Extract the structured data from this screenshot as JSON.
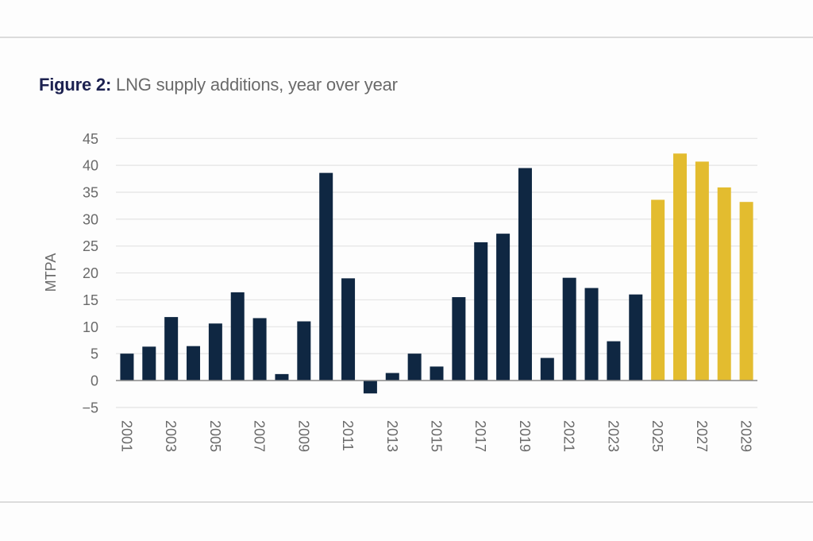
{
  "title": {
    "prefix": "Figure 2:",
    "text": "LNG supply additions, year over year"
  },
  "colors": {
    "historical": "#0f2742",
    "forecast": "#e3bc2f",
    "gridline": "#e4e4e4",
    "zero_line": "#8a8a8a",
    "title_prefix": "#1c2150",
    "text": "#6a6a6a"
  },
  "chart_data": {
    "type": "bar",
    "title": "Figure 2: LNG supply additions, year over year",
    "xlabel": "",
    "ylabel": "MTPA",
    "ylim": [
      -5,
      45
    ],
    "yticks": [
      -5,
      0,
      5,
      10,
      15,
      20,
      25,
      30,
      35,
      40,
      45
    ],
    "grid": true,
    "legend": "none",
    "categories": [
      "2001",
      "2002",
      "2003",
      "2004",
      "2005",
      "2006",
      "2007",
      "2008",
      "2009",
      "2010",
      "2011",
      "2012",
      "2013",
      "2014",
      "2015",
      "2016",
      "2017",
      "2018",
      "2019",
      "2020",
      "2021",
      "2022",
      "2023",
      "2024",
      "2025",
      "2026",
      "2027",
      "2028",
      "2029"
    ],
    "xtick_labels": [
      "2001",
      "2003",
      "2005",
      "2007",
      "2009",
      "2011",
      "2013",
      "2015",
      "2017",
      "2019",
      "2021",
      "2023",
      "2025",
      "2027",
      "2029"
    ],
    "values": [
      5.0,
      6.3,
      11.8,
      6.4,
      10.6,
      16.4,
      11.6,
      1.2,
      11.0,
      38.6,
      19.0,
      -2.4,
      1.4,
      5.0,
      2.6,
      15.5,
      25.7,
      27.3,
      39.5,
      4.2,
      19.1,
      17.2,
      7.3,
      16.0,
      33.6,
      42.2,
      40.7,
      35.9,
      33.2
    ],
    "series_type": [
      "historical",
      "historical",
      "historical",
      "historical",
      "historical",
      "historical",
      "historical",
      "historical",
      "historical",
      "historical",
      "historical",
      "historical",
      "historical",
      "historical",
      "historical",
      "historical",
      "historical",
      "historical",
      "historical",
      "historical",
      "historical",
      "historical",
      "historical",
      "historical",
      "forecast",
      "forecast",
      "forecast",
      "forecast",
      "forecast"
    ]
  }
}
